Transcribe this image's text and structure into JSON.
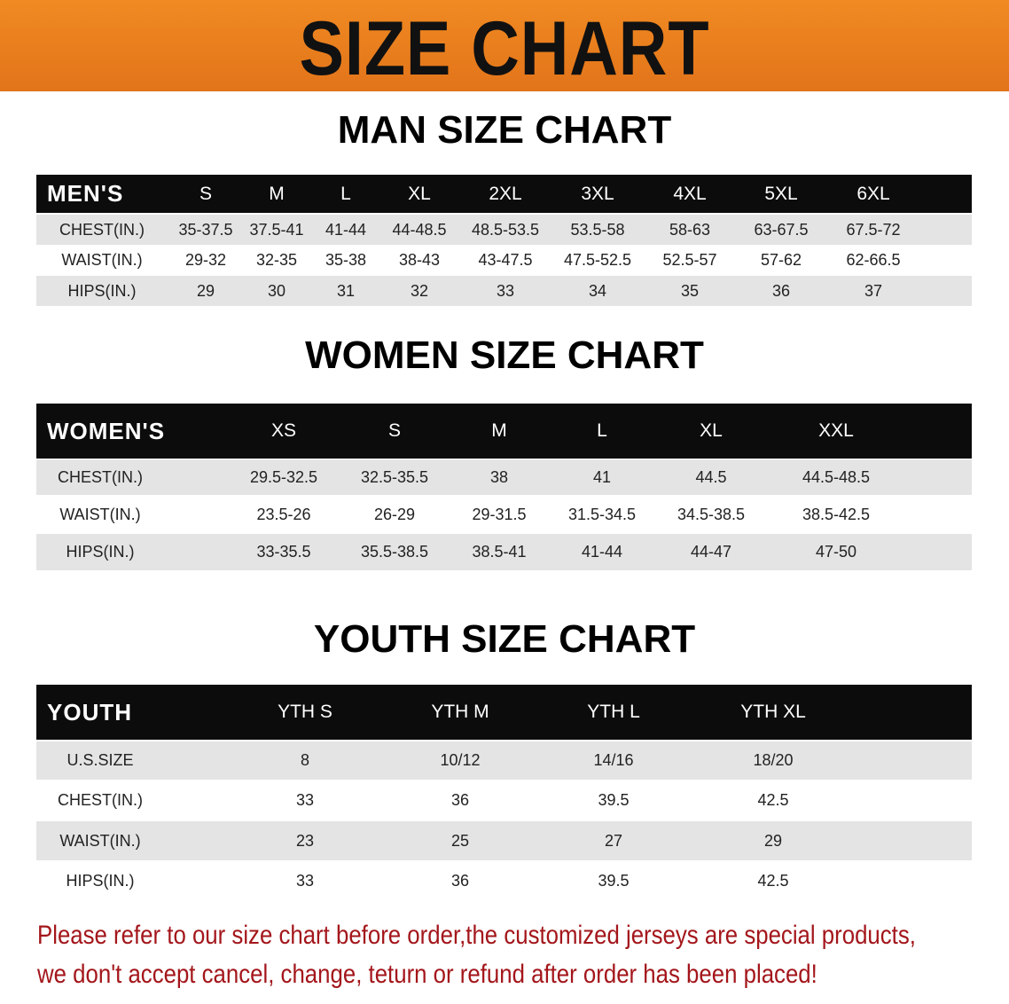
{
  "banner_title": "SIZE CHART",
  "men": {
    "title": "MAN SIZE CHART",
    "headers": [
      "MEN'S",
      "S",
      "M",
      "L",
      "XL",
      "2XL",
      "3XL",
      "4XL",
      "5XL",
      "6XL"
    ],
    "rows": [
      [
        "CHEST(IN.)",
        "35-37.5",
        "37.5-41",
        "41-44",
        "44-48.5",
        "48.5-53.5",
        "53.5-58",
        "58-63",
        "63-67.5",
        "67.5-72"
      ],
      [
        "WAIST(IN.)",
        "29-32",
        "32-35",
        "35-38",
        "38-43",
        "43-47.5",
        "47.5-52.5",
        "52.5-57",
        "57-62",
        "62-66.5"
      ],
      [
        "HIPS(IN.)",
        "29",
        "30",
        "31",
        "32",
        "33",
        "34",
        "35",
        "36",
        "37"
      ]
    ]
  },
  "women": {
    "title": "WOMEN SIZE CHART",
    "headers": [
      "WOMEN'S",
      "XS",
      "S",
      "M",
      "L",
      "XL",
      "XXL"
    ],
    "rows": [
      [
        "CHEST(IN.)",
        "29.5-32.5",
        "32.5-35.5",
        "38",
        "41",
        "44.5",
        "44.5-48.5"
      ],
      [
        "WAIST(IN.)",
        "23.5-26",
        "26-29",
        "29-31.5",
        "31.5-34.5",
        "34.5-38.5",
        "38.5-42.5"
      ],
      [
        "HIPS(IN.)",
        "33-35.5",
        "35.5-38.5",
        "38.5-41",
        "41-44",
        "44-47",
        "47-50"
      ]
    ]
  },
  "youth": {
    "title": "YOUTH SIZE CHART",
    "headers": [
      "YOUTH",
      "YTH S",
      "YTH M",
      "YTH L",
      "YTH XL"
    ],
    "rows": [
      [
        "U.S.SIZE",
        "8",
        "10/12",
        "14/16",
        "18/20"
      ],
      [
        "CHEST(IN.)",
        "33",
        "36",
        "39.5",
        "42.5"
      ],
      [
        "WAIST(IN.)",
        "23",
        "25",
        "27",
        "29"
      ],
      [
        "HIPS(IN.)",
        "33",
        "36",
        "39.5",
        "42.5"
      ]
    ]
  },
  "notice": {
    "line1": "Please refer to our size chart before order,the customized jerseys are special products,",
    "line2": "we don't accept cancel, change, teturn or refund after order has been placed!"
  },
  "colors": {
    "banner": "#e8781a",
    "header_row": "#0c0c0c",
    "shaded_row": "#e4e4e4",
    "notice_text": "#a3161b"
  }
}
